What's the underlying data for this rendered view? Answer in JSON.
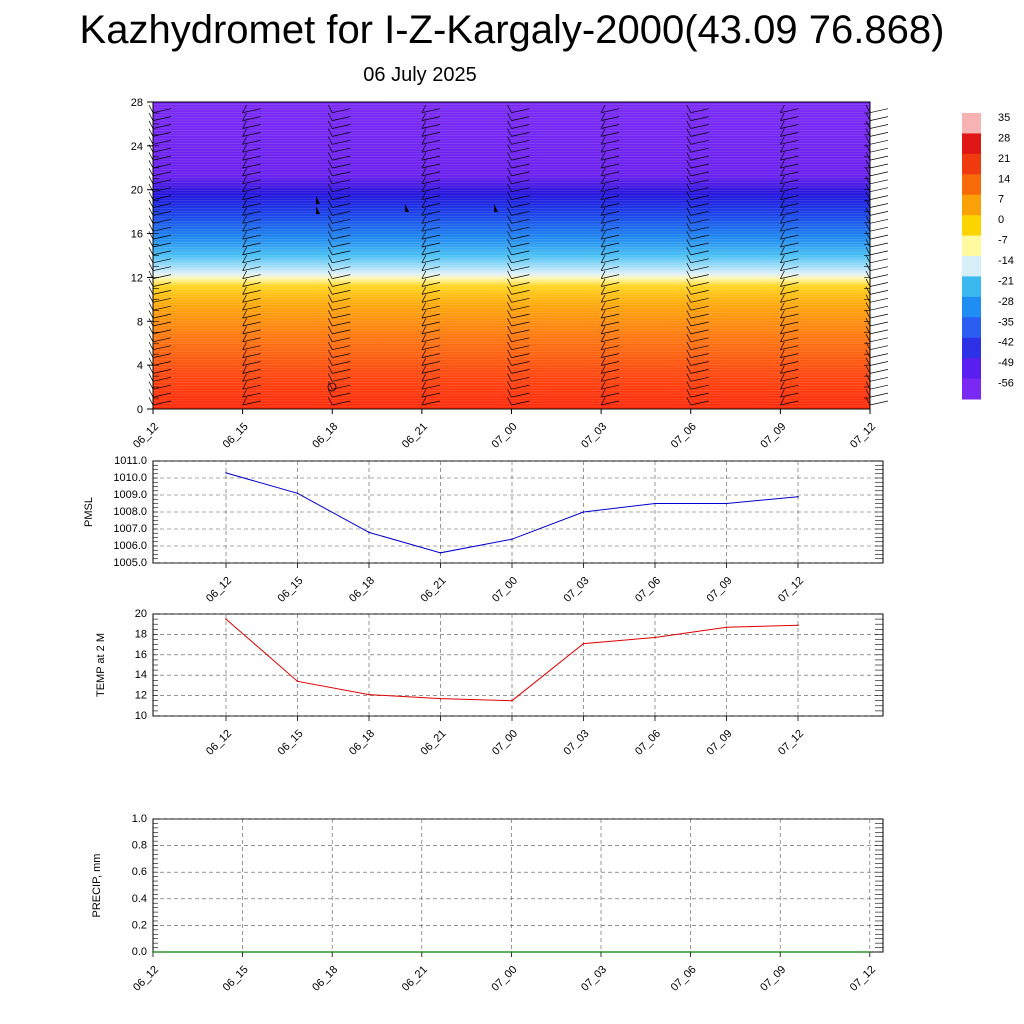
{
  "title": "Kazhydromet for I-Z-Kargaly-2000(43.09 76.868)",
  "subtitle": "06 July 2025",
  "chart_data": [
    {
      "type": "heatmap",
      "x_ticks": [
        "06_12",
        "06_15",
        "06_18",
        "06_21",
        "07_00",
        "07_03",
        "07_06",
        "07_09",
        "07_12"
      ],
      "y_ticks": [
        0,
        4,
        8,
        12,
        16,
        20,
        24,
        28
      ],
      "ylim": [
        0,
        28
      ],
      "colorbar_labels": [
        "35",
        "28",
        "21",
        "14",
        "7",
        "0",
        "-7",
        "-14",
        "-21",
        "-28",
        "-35",
        "-42",
        "-49",
        "-56"
      ],
      "colorbar_colors": [
        "#f7b3b3",
        "#e01515",
        "#f03a10",
        "#f76a0a",
        "#fba108",
        "#fcd400",
        "#fff9a0",
        "#d6eef8",
        "#3ab8f0",
        "#1f8df4",
        "#2a5ef2",
        "#2e32e6",
        "#5a1ef0",
        "#7a28f4"
      ]
    },
    {
      "type": "line",
      "ylabel": "PMSL",
      "categories": [
        "06_12",
        "06_15",
        "06_18",
        "06_21",
        "07_00",
        "07_03",
        "07_06",
        "07_09",
        "07_12"
      ],
      "y_ticks": [
        "1005.0",
        "1006.0",
        "1007.0",
        "1008.0",
        "1009.0",
        "1010.0",
        "1011.0"
      ],
      "ylim": [
        1005.0,
        1011.0
      ],
      "values": [
        1010.3,
        1009.1,
        1006.8,
        1005.6,
        1006.4,
        1008.0,
        1008.5,
        1008.5,
        1008.9
      ],
      "color": "#0000cc"
    },
    {
      "type": "line",
      "ylabel": "TEMP at 2 M",
      "categories": [
        "06_12",
        "06_15",
        "06_18",
        "06_21",
        "07_00",
        "07_03",
        "07_06",
        "07_09",
        "07_12"
      ],
      "y_ticks": [
        "10",
        "12",
        "14",
        "16",
        "18",
        "20"
      ],
      "ylim": [
        10,
        20
      ],
      "values": [
        19.5,
        13.4,
        12.1,
        11.7,
        11.5,
        17.1,
        17.7,
        18.7,
        18.9
      ],
      "color": "#e00000"
    },
    {
      "type": "line",
      "ylabel": "PRECIP, mm",
      "categories": [
        "06_12",
        "06_15",
        "06_18",
        "06_21",
        "07_00",
        "07_03",
        "07_06",
        "07_09",
        "07_12"
      ],
      "y_ticks": [
        "0.0",
        "0.2",
        "0.4",
        "0.6",
        "0.8",
        "1.0"
      ],
      "ylim": [
        0.0,
        1.0
      ],
      "values": [
        0,
        0,
        0,
        0,
        0,
        0,
        0,
        0,
        0
      ],
      "color": "#008000"
    }
  ]
}
